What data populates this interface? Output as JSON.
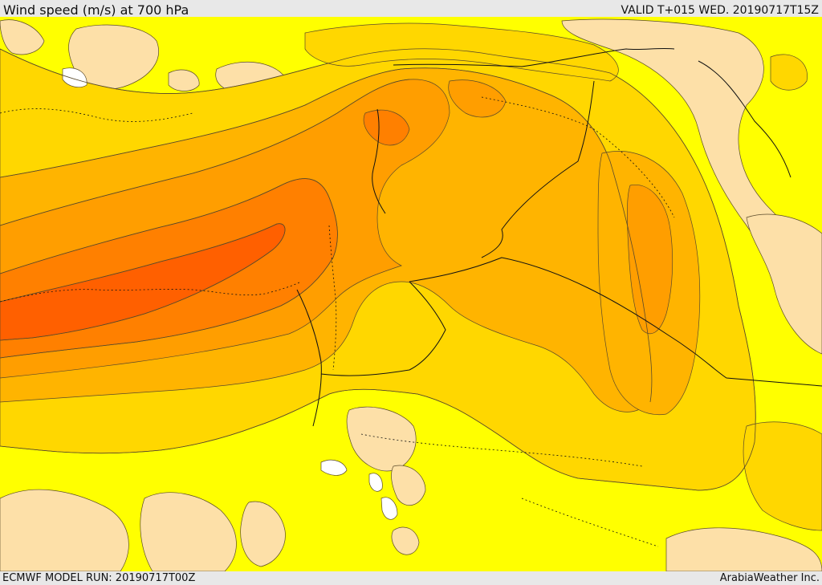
{
  "header": {
    "title": "Wind speed (m/s) at 700 hPa",
    "valid": "VALID T+015 WED. 20190717T15Z"
  },
  "footer": {
    "model_run": "ECMWF MODEL RUN: 20190717T00Z",
    "credit": "ArabiaWeather Inc."
  },
  "palette": {
    "calm": "#ffffff",
    "band_2": "#fde0a8",
    "band_3": "#ffff00",
    "band_4": "#ffd700",
    "band_5": "#ffb400",
    "band_6": "#ff9e00",
    "band_7": "#ff8000",
    "band_8": "#ff6000",
    "contour_line": "#5a4a2a",
    "border_line": "#111111"
  }
}
